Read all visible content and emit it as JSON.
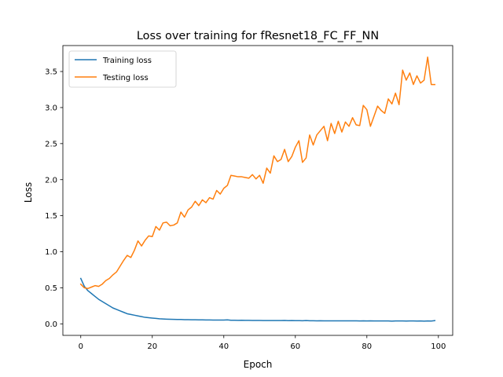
{
  "chart_data": {
    "type": "line",
    "title": "Loss over training for fResnet18_FC_FF_NN",
    "xlabel": "Epoch",
    "ylabel": "Loss",
    "xlim": [
      -5.0,
      104.0
    ],
    "ylim": [
      -0.16,
      3.86
    ],
    "xticks": [
      0,
      20,
      40,
      60,
      80,
      100
    ],
    "xtick_labels": [
      "0",
      "20",
      "40",
      "60",
      "80",
      "100"
    ],
    "yticks": [
      0.0,
      0.5,
      1.0,
      1.5,
      2.0,
      2.5,
      3.0,
      3.5
    ],
    "ytick_labels": [
      "0.0",
      "0.5",
      "1.0",
      "1.5",
      "2.0",
      "2.5",
      "3.0",
      "3.5"
    ],
    "grid": false,
    "legend_position": "top-left",
    "x": [
      0,
      1,
      2,
      3,
      4,
      5,
      6,
      7,
      8,
      9,
      10,
      11,
      12,
      13,
      14,
      15,
      16,
      17,
      18,
      19,
      20,
      21,
      22,
      23,
      24,
      25,
      26,
      27,
      28,
      29,
      30,
      31,
      32,
      33,
      34,
      35,
      36,
      37,
      38,
      39,
      40,
      41,
      42,
      43,
      44,
      45,
      46,
      47,
      48,
      49,
      50,
      51,
      52,
      53,
      54,
      55,
      56,
      57,
      58,
      59,
      60,
      61,
      62,
      63,
      64,
      65,
      66,
      67,
      68,
      69,
      70,
      71,
      72,
      73,
      74,
      75,
      76,
      77,
      78,
      79,
      80,
      81,
      82,
      83,
      84,
      85,
      86,
      87,
      88,
      89,
      90,
      91,
      92,
      93,
      94,
      95,
      96,
      97,
      98,
      99
    ],
    "series": [
      {
        "name": "Training loss",
        "color": "#1f77b4",
        "values": [
          0.63,
          0.52,
          0.46,
          0.42,
          0.38,
          0.34,
          0.31,
          0.28,
          0.25,
          0.22,
          0.2,
          0.18,
          0.16,
          0.14,
          0.13,
          0.12,
          0.11,
          0.1,
          0.09,
          0.085,
          0.08,
          0.075,
          0.07,
          0.068,
          0.065,
          0.063,
          0.062,
          0.06,
          0.06,
          0.058,
          0.058,
          0.057,
          0.056,
          0.055,
          0.055,
          0.054,
          0.054,
          0.053,
          0.053,
          0.052,
          0.052,
          0.055,
          0.05,
          0.05,
          0.049,
          0.05,
          0.048,
          0.048,
          0.047,
          0.047,
          0.047,
          0.046,
          0.046,
          0.046,
          0.045,
          0.045,
          0.045,
          0.047,
          0.044,
          0.045,
          0.044,
          0.044,
          0.043,
          0.045,
          0.043,
          0.043,
          0.042,
          0.043,
          0.042,
          0.042,
          0.042,
          0.041,
          0.042,
          0.042,
          0.041,
          0.041,
          0.041,
          0.041,
          0.04,
          0.041,
          0.04,
          0.041,
          0.04,
          0.04,
          0.04,
          0.04,
          0.04,
          0.038,
          0.04,
          0.04,
          0.04,
          0.039,
          0.04,
          0.04,
          0.039,
          0.04,
          0.038,
          0.04,
          0.039,
          0.045
        ]
      },
      {
        "name": "Testing loss",
        "color": "#ff7f0e",
        "values": [
          0.55,
          0.5,
          0.49,
          0.51,
          0.53,
          0.52,
          0.55,
          0.6,
          0.63,
          0.68,
          0.72,
          0.8,
          0.88,
          0.95,
          0.92,
          1.02,
          1.15,
          1.08,
          1.16,
          1.22,
          1.21,
          1.35,
          1.3,
          1.4,
          1.41,
          1.36,
          1.37,
          1.4,
          1.55,
          1.48,
          1.58,
          1.62,
          1.7,
          1.64,
          1.72,
          1.68,
          1.75,
          1.73,
          1.85,
          1.8,
          1.88,
          1.92,
          2.06,
          2.05,
          2.04,
          2.04,
          2.03,
          2.02,
          2.07,
          2.01,
          2.06,
          1.95,
          2.16,
          2.09,
          2.33,
          2.25,
          2.28,
          2.42,
          2.25,
          2.32,
          2.45,
          2.54,
          2.24,
          2.3,
          2.62,
          2.48,
          2.62,
          2.68,
          2.74,
          2.54,
          2.78,
          2.64,
          2.81,
          2.66,
          2.8,
          2.74,
          2.86,
          2.76,
          2.75,
          3.03,
          2.97,
          2.74,
          2.88,
          3.02,
          2.96,
          2.92,
          3.12,
          3.05,
          3.2,
          3.04,
          3.52,
          3.38,
          3.48,
          3.32,
          3.44,
          3.34,
          3.38,
          3.7,
          3.32,
          3.32
        ]
      }
    ]
  }
}
